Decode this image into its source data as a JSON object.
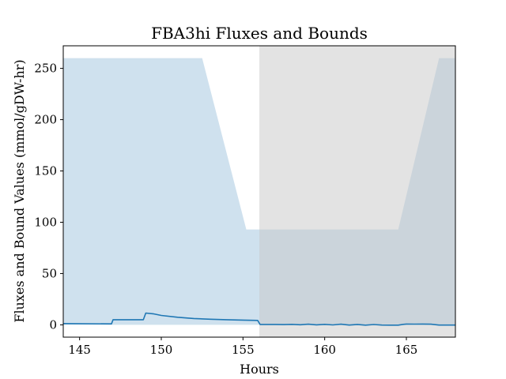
{
  "chart_data": {
    "type": "line",
    "title": "FBA3hi Fluxes and Bounds",
    "xlabel": "Hours",
    "ylabel": "Fluxes and Bound Values (mmol/gDW-hr)",
    "xlim": [
      144,
      168
    ],
    "ylim": [
      -12,
      272
    ],
    "xticks": [
      145,
      150,
      155,
      160,
      165
    ],
    "yticks": [
      0,
      50,
      100,
      150,
      200,
      250
    ],
    "grid": false,
    "legend": "none",
    "bound_band": {
      "color": "#cfe1ee",
      "x": [
        144,
        152.5,
        155.2,
        164.5,
        167.0,
        168
      ],
      "lower": [
        0,
        0,
        0,
        0,
        0,
        0
      ],
      "upper": [
        260,
        260,
        93,
        93,
        260,
        260
      ]
    },
    "shaded_region": {
      "color": "#c8c8c8",
      "x_start": 156.0,
      "x_end": 168
    },
    "series": [
      {
        "color": "#1f77b4",
        "x": [
          144,
          146.95,
          147.05,
          148.9,
          149.05,
          149.5,
          150,
          151,
          152,
          153,
          154,
          155,
          155.9,
          156.05,
          157,
          157.5,
          158,
          158.5,
          159,
          159.5,
          160,
          160.5,
          161,
          161.5,
          162,
          162.5,
          163,
          163.5,
          164,
          164.5,
          164.8,
          165,
          165.5,
          166,
          166.5,
          167,
          168
        ],
        "y": [
          1.2,
          0.9,
          5.0,
          5.0,
          11.5,
          10.8,
          9.2,
          7.4,
          6.2,
          5.5,
          5.0,
          4.6,
          4.3,
          0.4,
          0.4,
          0.2,
          0.5,
          0.1,
          0.6,
          0.0,
          0.5,
          -0.1,
          0.6,
          -0.2,
          0.4,
          -0.3,
          0.3,
          -0.2,
          -0.3,
          -0.3,
          0.5,
          0.8,
          0.7,
          0.8,
          0.6,
          -0.2,
          -0.2
        ]
      }
    ]
  }
}
